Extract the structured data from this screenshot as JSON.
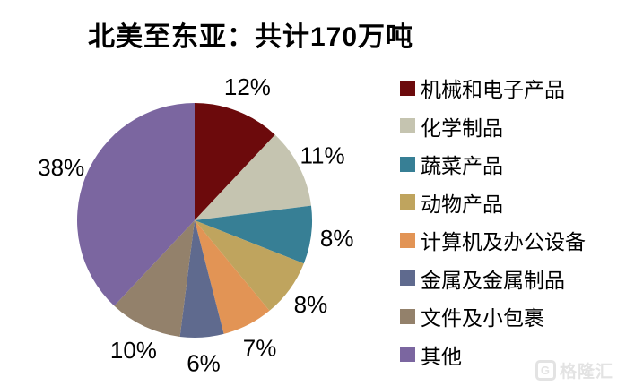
{
  "title": "北美至东亚：共计170万吨",
  "chart_data": {
    "type": "pie",
    "title": "北美至东亚：共计170万吨",
    "total_label": "共计170万吨",
    "unit": "%",
    "direction": "clockwise",
    "start_angle_deg": 0,
    "legend_position": "right",
    "categories": [
      "机械和电子产品",
      "化学制品",
      "蔬菜产品",
      "动物产品",
      "计算机及办公设备",
      "金属及金属制品",
      "文件及小包裹",
      "其他"
    ],
    "values": [
      12,
      11,
      8,
      8,
      7,
      6,
      10,
      38
    ],
    "labels": [
      "12%",
      "11%",
      "8%",
      "8%",
      "7%",
      "6%",
      "10%",
      "38%"
    ],
    "colors": [
      "#6C0A0C",
      "#C5C4B0",
      "#377F95",
      "#BFA45E",
      "#E29455",
      "#5F6A8E",
      "#93816B",
      "#7B66A0"
    ]
  },
  "legend": {
    "items": [
      {
        "label": "机械和电子产品",
        "color": "#6C0A0C"
      },
      {
        "label": "化学制品",
        "color": "#C5C4B0"
      },
      {
        "label": "蔬菜产品",
        "color": "#377F95"
      },
      {
        "label": "动物产品",
        "color": "#BFA45E"
      },
      {
        "label": "计算机及办公设备",
        "color": "#E29455"
      },
      {
        "label": "金属及金属制品",
        "color": "#5F6A8E"
      },
      {
        "label": "文件及小包裹",
        "color": "#93816B"
      },
      {
        "label": "其他",
        "color": "#7B66A0"
      }
    ]
  },
  "watermark": {
    "logo": "G",
    "text": "格隆汇"
  }
}
